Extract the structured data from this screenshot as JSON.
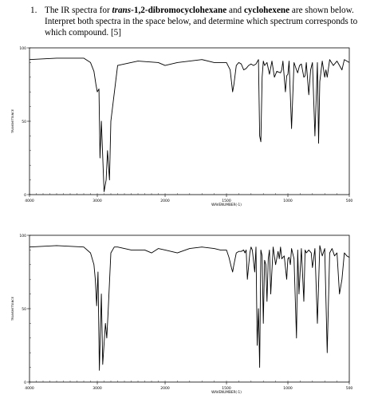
{
  "question": {
    "number": "1.",
    "text_a": "The IR spectra for ",
    "compound_1_prefix": "trans",
    "compound_1_rest": "-1,2-dibromocyclohexane",
    "text_b": " and ",
    "compound_2": "cyclohexene",
    "text_c": " are shown below. Interpret both spectra in the space below, and determine which spectrum corresponds to which compound. [5]"
  },
  "chart_data": [
    {
      "type": "line",
      "xlabel": "WAVENUMBER(-1)",
      "ylabel": "TRANSMITTANCE",
      "xlim": [
        4000,
        500
      ],
      "ylim": [
        0,
        100
      ],
      "x_ticks": [
        "4000",
        "3000",
        "2000",
        "1500",
        "1000",
        "500"
      ],
      "y_ticks": [
        "100",
        "50",
        "0"
      ],
      "x": [
        4000,
        3600,
        3200,
        3100,
        3050,
        3020,
        3000,
        2975,
        2960,
        2940,
        2900,
        2870,
        2850,
        2820,
        2800,
        2700,
        2400,
        2100,
        2000,
        1900,
        1800,
        1700,
        1600,
        1500,
        1470,
        1450,
        1440,
        1420,
        1400,
        1380,
        1360,
        1340,
        1320,
        1300,
        1280,
        1260,
        1240,
        1230,
        1220,
        1210,
        1200,
        1190,
        1170,
        1150,
        1130,
        1110,
        1090,
        1060,
        1050,
        1040,
        1020,
        1010,
        1000,
        990,
        970,
        950,
        930,
        920,
        905,
        890,
        870,
        860,
        850,
        830,
        815,
        800,
        780,
        760,
        750,
        740,
        720,
        700,
        690,
        680,
        660,
        630,
        600,
        560,
        540,
        500
      ],
      "values": [
        92,
        93,
        93,
        90,
        84,
        75,
        70,
        72,
        25,
        50,
        2,
        10,
        30,
        10,
        50,
        88,
        91,
        90,
        88,
        90,
        91,
        92,
        90,
        90,
        85,
        70,
        75,
        88,
        90,
        89,
        85,
        86,
        88,
        89,
        88,
        89,
        92,
        40,
        36,
        80,
        91,
        88,
        90,
        82,
        91,
        80,
        84,
        83,
        85,
        91,
        70,
        81,
        82,
        91,
        45,
        90,
        85,
        83,
        88,
        89,
        80,
        81,
        90,
        68,
        85,
        90,
        40,
        90,
        35,
        77,
        91,
        80,
        85,
        80,
        92,
        88,
        91,
        85,
        92,
        90
      ]
    },
    {
      "type": "line",
      "xlabel": "WAVENUMBER(-1)",
      "ylabel": "TRANSMITTANCE",
      "xlim": [
        4000,
        500
      ],
      "ylim": [
        0,
        100
      ],
      "x_ticks": [
        "4000",
        "3000",
        "2000",
        "1500",
        "1000",
        "500"
      ],
      "y_ticks": [
        "100",
        "50",
        "0"
      ],
      "x": [
        4000,
        3600,
        3200,
        3100,
        3050,
        3030,
        3010,
        2990,
        2970,
        2940,
        2920,
        2880,
        2860,
        2840,
        2800,
        2750,
        2700,
        2600,
        2500,
        2300,
        2200,
        2100,
        2000,
        1900,
        1800,
        1700,
        1600,
        1550,
        1500,
        1480,
        1460,
        1450,
        1440,
        1420,
        1400,
        1380,
        1360,
        1350,
        1340,
        1330,
        1310,
        1300,
        1290,
        1270,
        1260,
        1250,
        1240,
        1230,
        1220,
        1210,
        1200,
        1190,
        1180,
        1170,
        1160,
        1150,
        1140,
        1120,
        1100,
        1080,
        1070,
        1060,
        1050,
        1030,
        1010,
        1000,
        990,
        980,
        970,
        950,
        930,
        920,
        910,
        890,
        870,
        860,
        850,
        830,
        810,
        800,
        790,
        780,
        760,
        740,
        720,
        700,
        680,
        660,
        640,
        620,
        600,
        580,
        560,
        540,
        520,
        500
      ],
      "values": [
        92,
        93,
        92,
        88,
        80,
        70,
        52,
        75,
        8,
        60,
        12,
        40,
        30,
        48,
        88,
        92,
        92,
        91,
        90,
        90,
        88,
        91,
        90,
        88,
        91,
        92,
        91,
        90,
        90,
        85,
        78,
        75,
        80,
        88,
        89,
        89,
        90,
        88,
        90,
        70,
        88,
        92,
        90,
        75,
        92,
        25,
        50,
        10,
        90,
        86,
        40,
        83,
        80,
        55,
        84,
        90,
        60,
        92,
        80,
        89,
        84,
        92,
        84,
        86,
        70,
        84,
        85,
        80,
        91,
        84,
        30,
        90,
        60,
        91,
        55,
        90,
        88,
        90,
        88,
        78,
        84,
        91,
        40,
        93,
        86,
        91,
        20,
        88,
        91,
        86,
        88,
        60,
        70,
        88,
        86,
        85
      ]
    }
  ]
}
